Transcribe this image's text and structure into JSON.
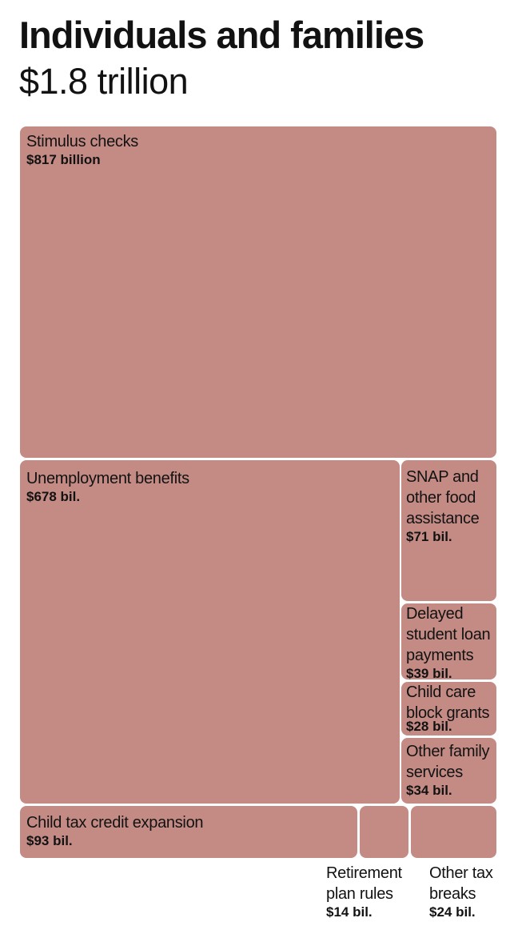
{
  "header": {
    "title": "Individuals and families",
    "subtitle": "$1.8 trillion"
  },
  "colors": {
    "tile": "#c48b85"
  },
  "chart_data": {
    "type": "treemap",
    "title": "Individuals and families",
    "total_label": "$1.8 trillion",
    "unit": "billion USD",
    "items": [
      {
        "name": "Stimulus checks",
        "value": 817,
        "value_label": "$817 billion"
      },
      {
        "name": "Unemployment benefits",
        "value": 678,
        "value_label": "$678 bil."
      },
      {
        "name": "SNAP and other food assistance",
        "value": 71,
        "value_label": "$71 bil."
      },
      {
        "name": "Delayed student loan payments",
        "value": 39,
        "value_label": "$39 bil."
      },
      {
        "name": "Child care block grants",
        "value": 28,
        "value_label": "$28 bil."
      },
      {
        "name": "Other family services",
        "value": 34,
        "value_label": "$34 bil."
      },
      {
        "name": "Child tax credit expansion",
        "value": 93,
        "value_label": "$93 bil."
      },
      {
        "name": "Retirement plan rules",
        "value": 14,
        "value_label": "$14 bil."
      },
      {
        "name": "Other tax breaks",
        "value": 24,
        "value_label": "$24 bil."
      }
    ]
  }
}
